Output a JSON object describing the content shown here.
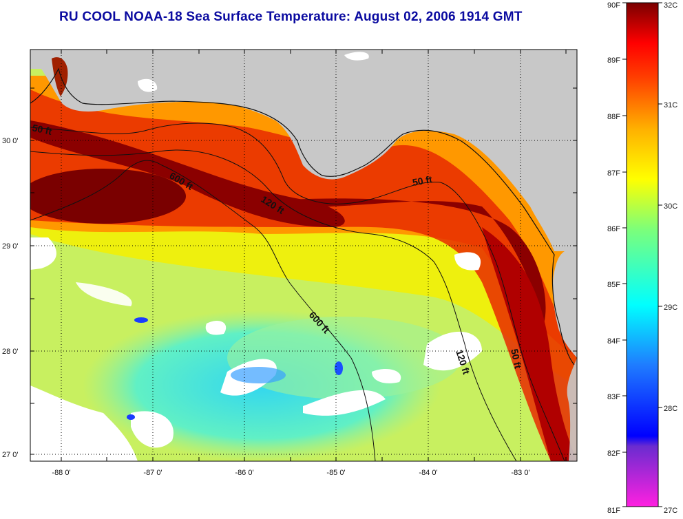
{
  "title": "RU COOL  NOAA-18  Sea Surface Temperature:  August 02, 2006 1914 GMT",
  "map": {
    "lat_ticks": [
      "30 0'",
      "29 0'",
      "28 0'",
      "27 0'"
    ],
    "lon_ticks": [
      "-88 0'",
      "-87 0'",
      "-86 0'",
      "-85 0'",
      "-84 0'",
      "-83 0'"
    ],
    "contours": [
      "50 ft",
      "600 ft",
      "120 ft",
      "50 ft",
      "600 ft",
      "120 ft",
      "50 ft"
    ]
  },
  "colorbar": {
    "fahrenheit": [
      "90F",
      "89F",
      "88F",
      "87F",
      "86F",
      "85F",
      "84F",
      "83F",
      "82F",
      "81F"
    ],
    "celsius": [
      "32C",
      "31C",
      "30C",
      "29C",
      "28C",
      "27C"
    ],
    "colors": [
      "#7a0000",
      "#ff0000",
      "#ff8c00",
      "#ffff00",
      "#00ffff",
      "#0000ff",
      "#ff00ff"
    ]
  }
}
